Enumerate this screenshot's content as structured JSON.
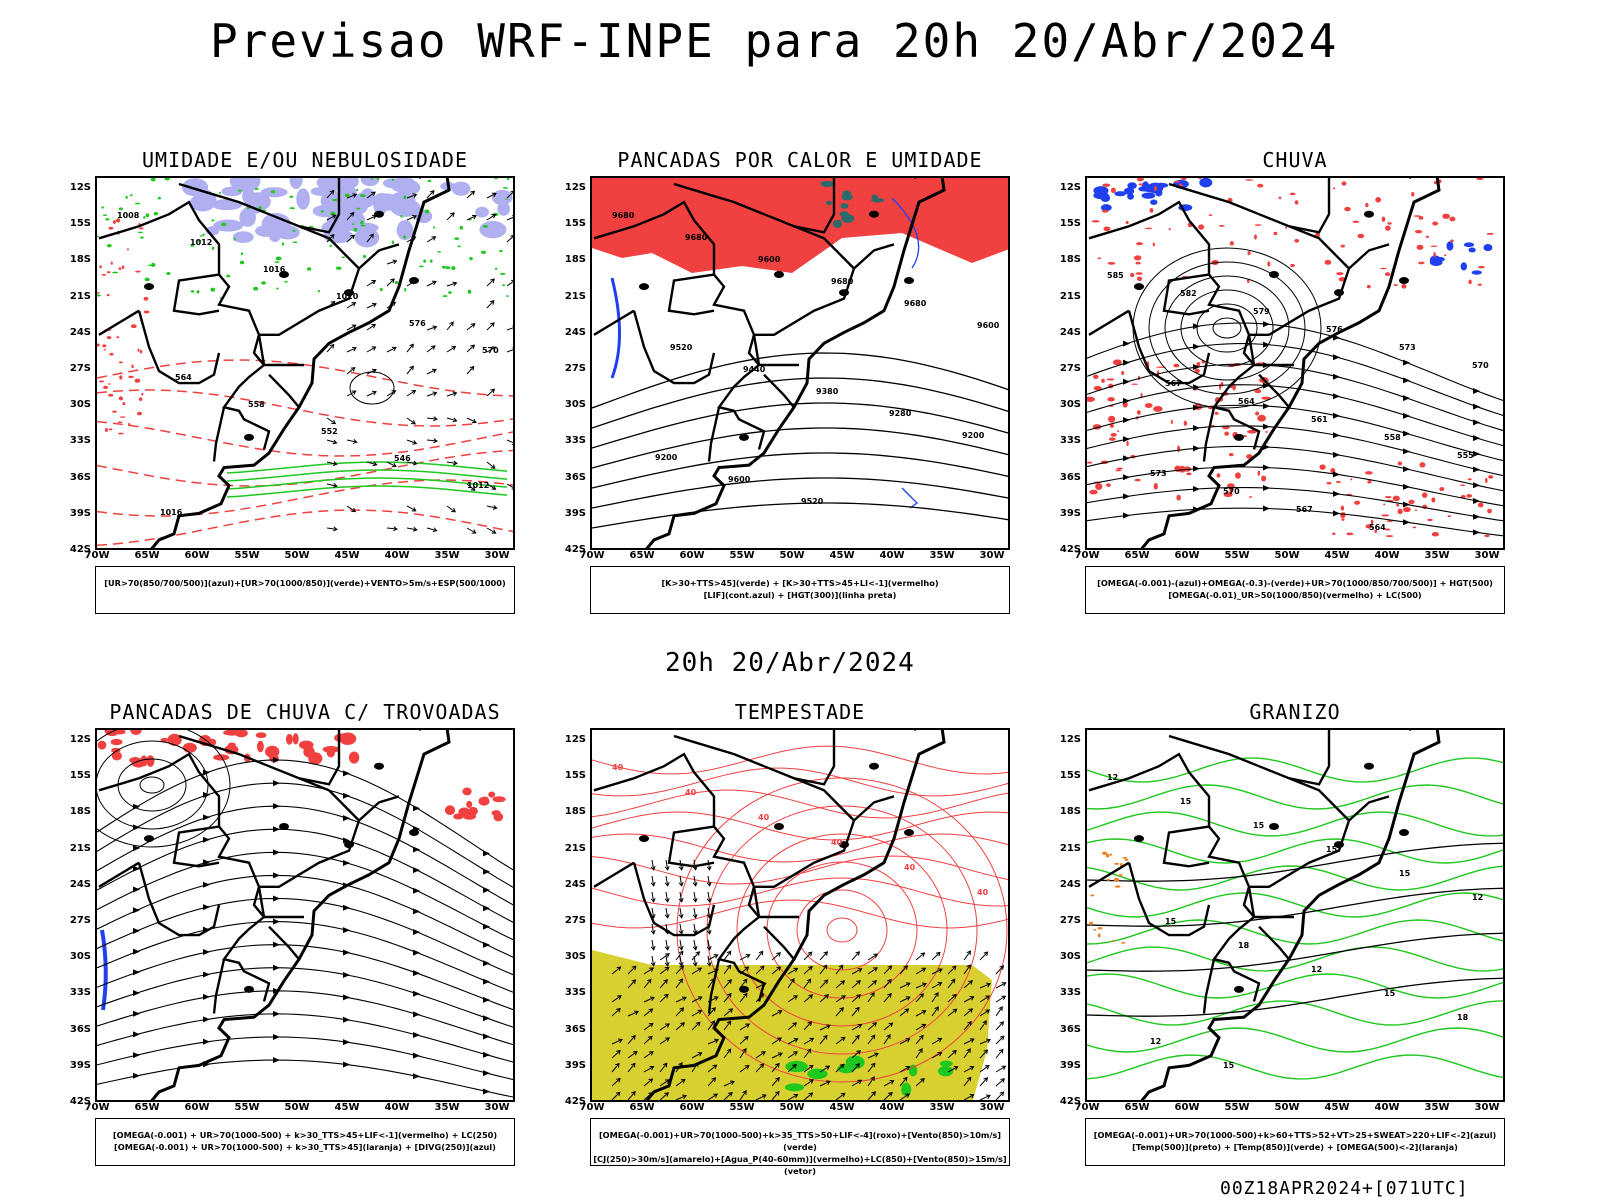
{
  "header": {
    "title": "Previsao WRF-INPE  para 20h 20/Abr/2024"
  },
  "mid_title": "20h 20/Abr/2024",
  "footer": "00Z18APR2024+[071UTC]",
  "axes": {
    "lat_labels": [
      "12S",
      "15S",
      "18S",
      "21S",
      "24S",
      "27S",
      "30S",
      "33S",
      "36S",
      "39S",
      "42S"
    ],
    "lon_labels": [
      "70W",
      "65W",
      "60W",
      "55W",
      "50W",
      "45W",
      "40W",
      "35W",
      "30W"
    ]
  },
  "colors": {
    "red": "#f04040",
    "green": "#1ec81e",
    "blue": "#2040f0",
    "lavender": "#b0b0f0",
    "yellow": "#d8d030",
    "teal": "#2a6a6a",
    "orange": "#f08020",
    "black": "#000000"
  },
  "panels": [
    {
      "title": "UMIDADE E/OU NEBULOSIDADE",
      "legend": [
        "[UR>70(850/700/500)](azul)+[UR>70(1000/850)](verde)+VENTO>5m/s+ESP(500/1000)"
      ],
      "contour_labels": [
        "1008",
        "1012",
        "1016",
        "1020",
        "576",
        "570",
        "564",
        "558",
        "552",
        "546",
        "1012",
        "1016"
      ]
    },
    {
      "title": "PANCADAS POR CALOR E UMIDADE",
      "legend": [
        "[K>30+TTS>45](verde) + [K>30+TTS>45+LI<-1](vermelho)",
        "[LIF](cont.azul) + [HGT(300)](linha preta)"
      ],
      "contour_labels": [
        "9680",
        "9680",
        "9600",
        "9680",
        "9680",
        "9600",
        "9520",
        "9440",
        "9380",
        "9280",
        "9200",
        "9200",
        "9600",
        "9520"
      ]
    },
    {
      "title": "CHUVA",
      "legend": [
        "[OMEGA(-0.001)-(azul)+OMEGA(-0.3)-(verde)+UR>70(1000/850/700/500)] + HGT(500)",
        "[OMEGA(-0.01)_UR>50(1000/850)(vermelho) + LC(500)"
      ],
      "contour_labels": [
        "585",
        "582",
        "579",
        "576",
        "573",
        "570",
        "567",
        "564",
        "561",
        "558",
        "555",
        "573",
        "570",
        "567",
        "564"
      ]
    },
    {
      "title": "PANCADAS DE CHUVA C/ TROVOADAS",
      "legend": [
        "[OMEGA(-0.001) + UR>70(1000-500) + k>30_TTS>45+LIF<-1](vermelho) + LC(250)",
        "[OMEGA(-0.001) + UR>70(1000-500) + k>30_TTS>45](laranja) + [DIVG(250)](azul)"
      ],
      "contour_labels": []
    },
    {
      "title": "TEMPESTADE",
      "legend": [
        "[OMEGA(-0.001)+UR>70(1000-500)+k>35_TTS>50+LIF<-4](roxo)+[Vento(850)>10m/s](verde)",
        "[CJ(250)>30m/s](amarelo)+[Agua_P(40-60mm)](vermelho)+LC(850)+[Vento(850)>15m/s](vetor)"
      ],
      "contour_labels": [
        "40",
        "40",
        "40",
        "40",
        "40",
        "40"
      ]
    },
    {
      "title": "GRANIZO",
      "legend": [
        "[OMEGA(-0.001)+UR>70(1000-500)+k>60+TTS>52+VT>25+SWEAT>220+LIF<-2](azul)",
        "[Temp(500)](preto) + [Temp(850)](verde) + [OMEGA(500)<-2](laranja)"
      ],
      "contour_labels": [
        "12",
        "15",
        "15",
        "15",
        "15",
        "12",
        "15",
        "18",
        "12",
        "15",
        "18",
        "12",
        "15"
      ]
    }
  ]
}
